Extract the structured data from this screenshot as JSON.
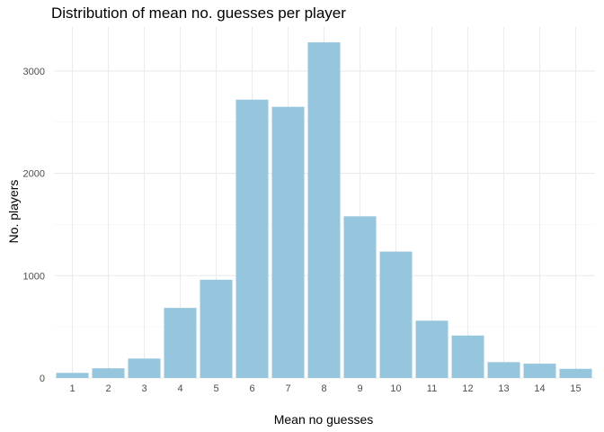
{
  "chart_data": {
    "type": "bar",
    "title": "Distribution of mean no. guesses per player",
    "xlabel": "Mean no guesses",
    "ylabel": "No. players",
    "categories": [
      "1",
      "2",
      "3",
      "4",
      "5",
      "6",
      "7",
      "8",
      "9",
      "10",
      "11",
      "12",
      "13",
      "14",
      "15"
    ],
    "values": [
      50,
      95,
      190,
      685,
      960,
      2720,
      2650,
      3280,
      1580,
      1235,
      560,
      415,
      155,
      140,
      90
    ],
    "yticks": [
      0,
      1000,
      2000,
      3000
    ],
    "ytick_labels": [
      "0",
      "1000",
      "2000",
      "3000"
    ],
    "ylim": [
      0,
      3430
    ],
    "grid": true,
    "bar_color": "#96c5de"
  }
}
